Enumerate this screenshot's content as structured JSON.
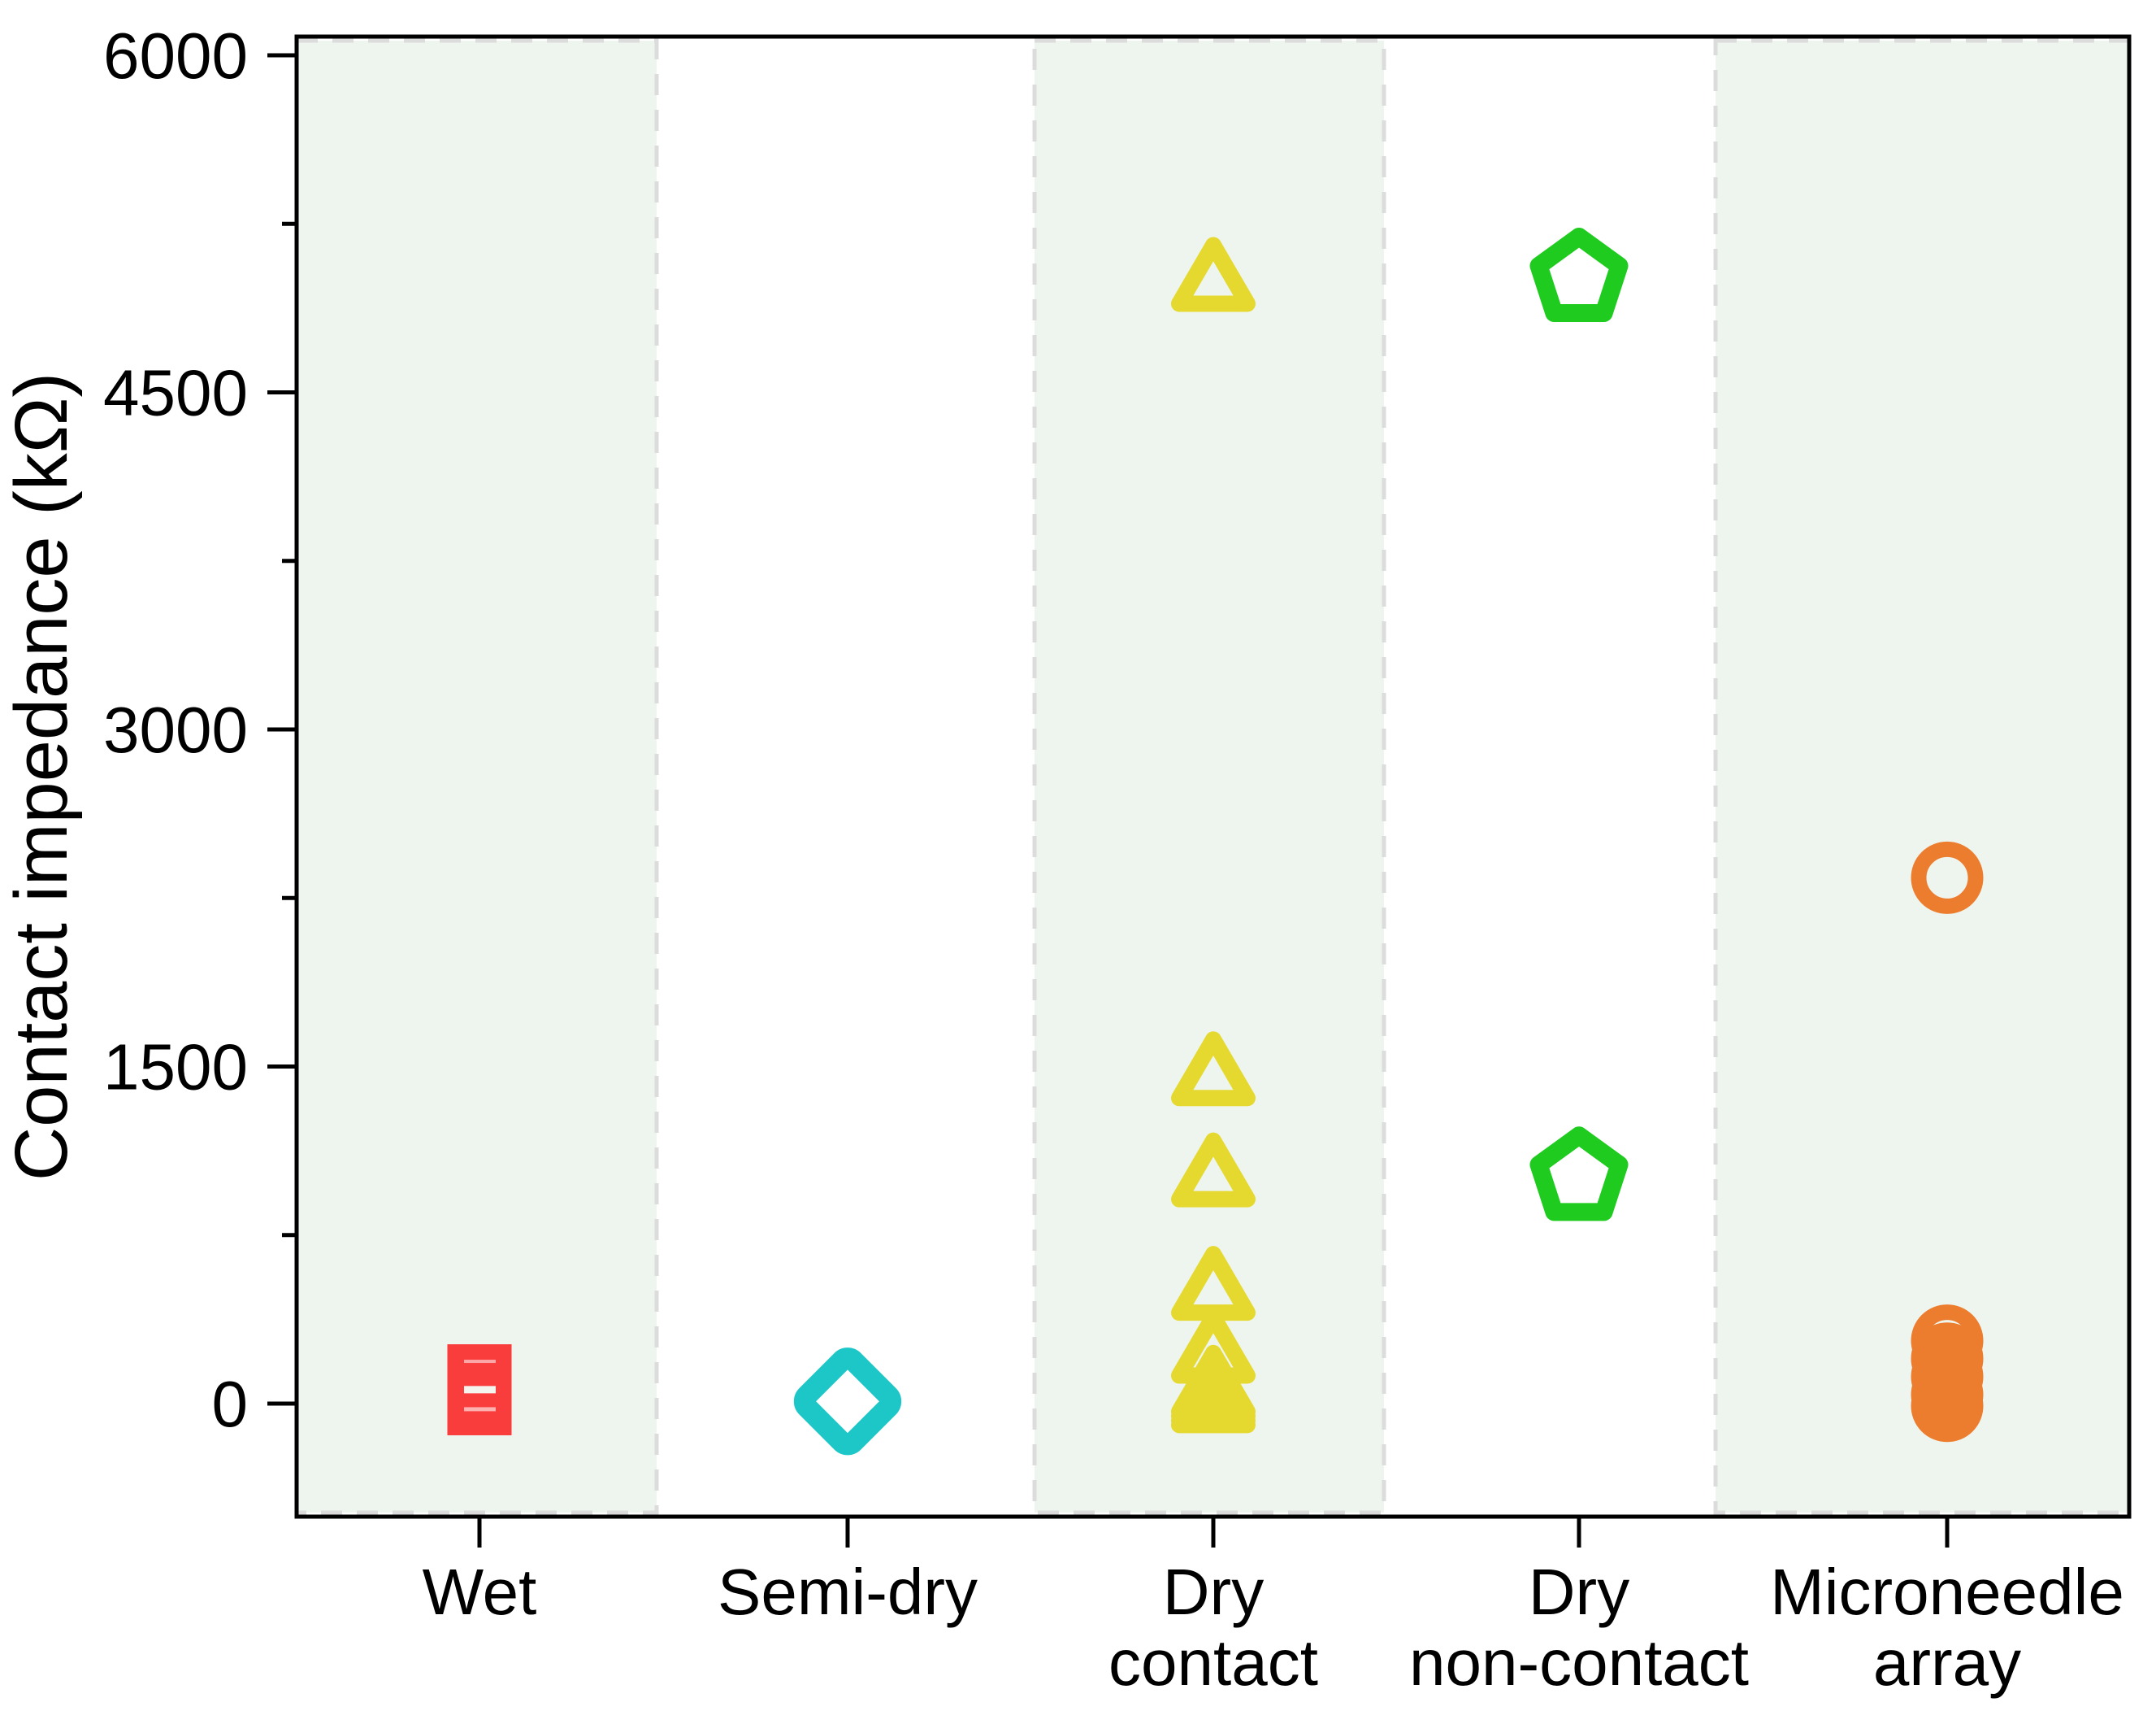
{
  "chart_data": {
    "type": "scatter",
    "title": "",
    "xlabel": "",
    "ylabel": "Contact impedance (kΩ)",
    "ylim": [
      -500,
      6100
    ],
    "grid": false,
    "legend": "none",
    "yticks": [
      {
        "value": 0,
        "label": "0"
      },
      {
        "value": 1500,
        "label": "1500"
      },
      {
        "value": 3000,
        "label": "3000"
      },
      {
        "value": 4500,
        "label": "4500"
      },
      {
        "value": 6000,
        "label": "6000"
      }
    ],
    "yticks_minor": [
      750,
      2250,
      3750,
      5250
    ],
    "categories": [
      {
        "id": "wet",
        "label_lines": [
          "Wet"
        ]
      },
      {
        "id": "semi-dry",
        "label_lines": [
          "Semi-dry"
        ]
      },
      {
        "id": "dry-contact",
        "label_lines": [
          "Dry",
          "contact"
        ]
      },
      {
        "id": "dry-non-contact",
        "label_lines": [
          "Dry",
          "non-contact"
        ]
      },
      {
        "id": "microneedle-array",
        "label_lines": [
          "Microneedle",
          "array"
        ]
      }
    ],
    "series": [
      {
        "name": "Wet",
        "category": "wet",
        "marker": "square",
        "color": "#f93c3c",
        "cluster_box": {
          "high": 264,
          "low": -141,
          "median": 62,
          "faint_lines": [
            188,
            -25
          ]
        }
      },
      {
        "name": "Semi-dry",
        "category": "semi-dry",
        "marker": "diamond",
        "color": "#1dc7c7",
        "open_values": [
          10
        ],
        "filled_values": []
      },
      {
        "name": "Dry contact",
        "category": "dry-contact",
        "marker": "triangle",
        "color": "#e5d930",
        "open_values": [
          5025,
          1490,
          1040,
          535,
          255
        ],
        "filled_values": [
          95,
          75,
          55,
          35
        ]
      },
      {
        "name": "Dry non-contact",
        "category": "dry-non-contact",
        "marker": "pentagon",
        "color": "#1fcb1f",
        "open_values": [
          5005,
          1005
        ],
        "filled_values": []
      },
      {
        "name": "Microneedle array",
        "category": "microneedle-array",
        "marker": "circle",
        "color": "#ed7d2e",
        "open_values": [
          2340,
          280
        ],
        "filled_values": [
          200,
          120,
          40,
          -10
        ]
      }
    ],
    "bands": {
      "shaded_indices": [
        0,
        2,
        4
      ],
      "fill": "#eef5ee",
      "dash_color": "#dcdcdc"
    }
  }
}
